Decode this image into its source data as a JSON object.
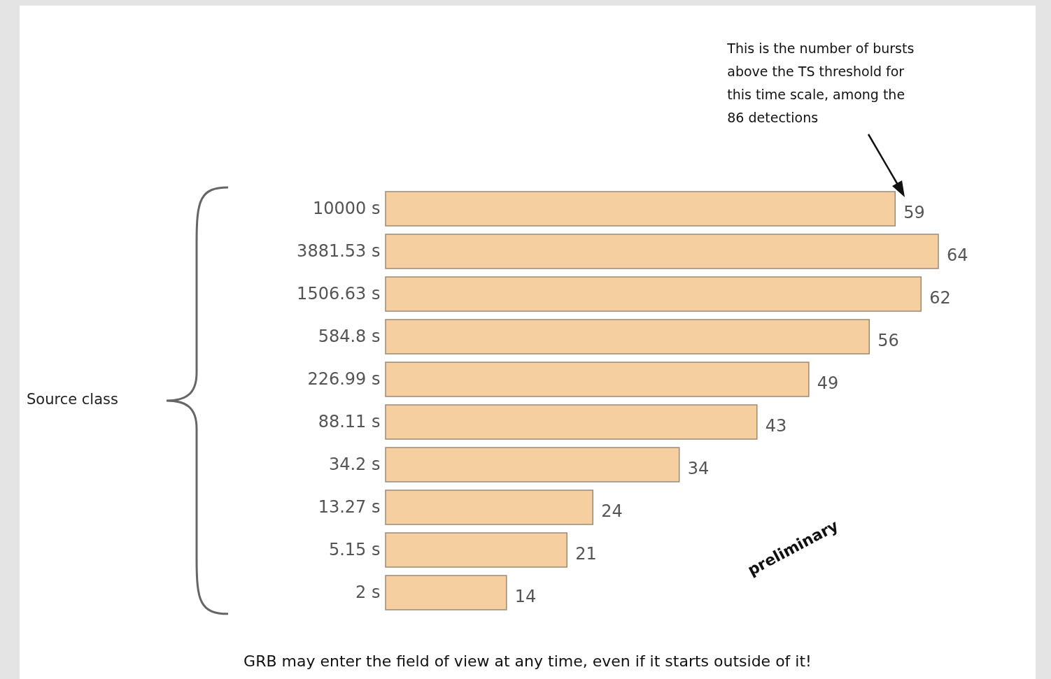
{
  "chart_data": {
    "type": "bar",
    "orientation": "horizontal",
    "categories": [
      "10000 s",
      "3881.53 s",
      "1506.63 s",
      "584.8 s",
      "226.99 s",
      "88.11 s",
      "34.2 s",
      "13.27 s",
      "5.15 s",
      "2 s"
    ],
    "values": [
      59,
      64,
      62,
      56,
      49,
      43,
      34,
      24,
      21,
      14
    ],
    "color": "#f5cf9f",
    "data_labels": true,
    "tick_labels": "y",
    "grid": false,
    "annotations": [
      "This is the number of bursts\nabove the TS threshold for\nthis time scale, among the\n86 detections",
      "Source class",
      "preliminary",
      "GRB may enter the field of view at any time, even if it starts outside of it!"
    ]
  }
}
